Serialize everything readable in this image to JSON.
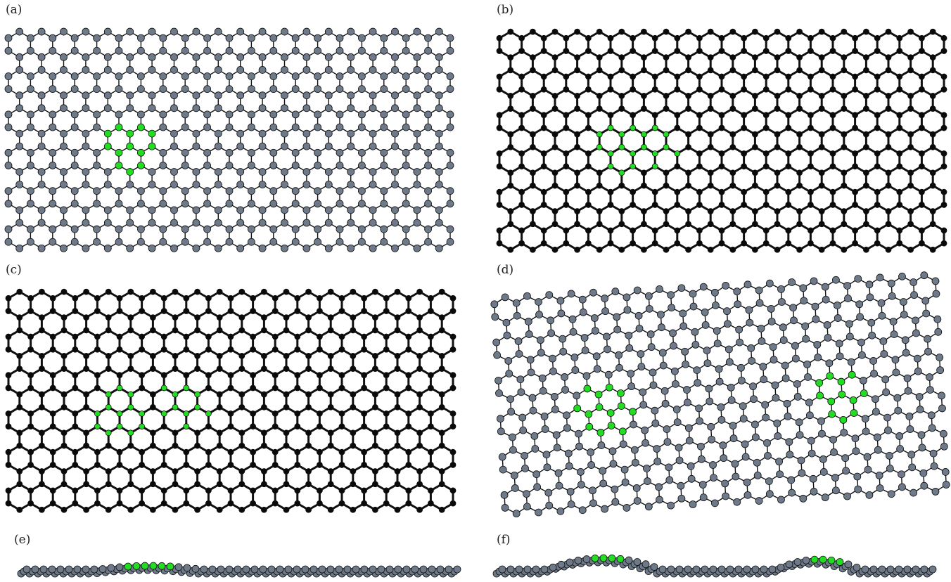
{
  "figure": {
    "panels": [
      {
        "label": "(a)",
        "style": "grey",
        "view": "top",
        "defect": "single Stone-Wales (55-77) defect"
      },
      {
        "label": "(b)",
        "style": "black",
        "view": "top",
        "defect": "extended defect pair"
      },
      {
        "label": "(c)",
        "style": "black",
        "view": "top",
        "defect": "two separated defects"
      },
      {
        "label": "(d)",
        "style": "grey",
        "view": "top",
        "defect": "two distant defects, rotated sheet"
      },
      {
        "label": "(e)",
        "style": "grey",
        "view": "side",
        "defect": "single defect, side view"
      },
      {
        "label": "(f)",
        "style": "grey",
        "view": "side",
        "defect": "two defects, side view with buckling"
      }
    ]
  },
  "colors": {
    "atom_grey": "#6e7a89",
    "atom_black": "#0a0a0a",
    "bond": "#111111",
    "defect_atom": "#22dd22",
    "atom_outline": "#111111",
    "background": "#ffffff"
  }
}
